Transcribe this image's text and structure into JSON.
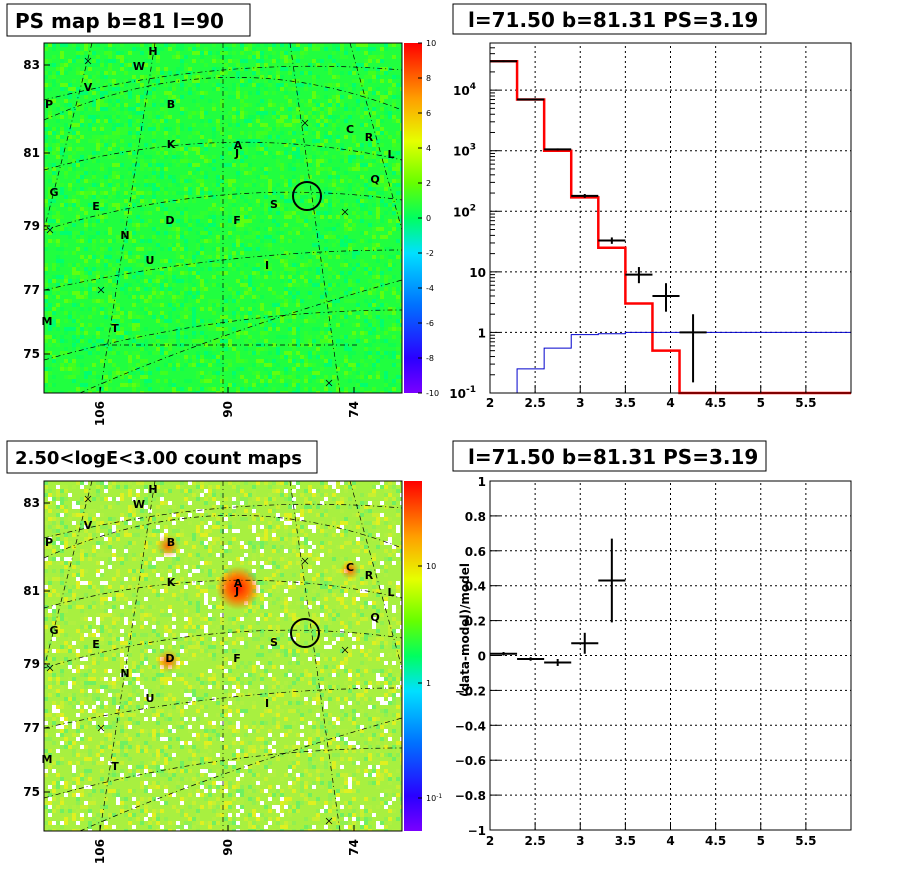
{
  "panels": {
    "ps_map": {
      "title": "PS map b=81 l=90",
      "y_ticks": [
        "83",
        "81",
        "79",
        "77",
        "75"
      ],
      "x_ticks": [
        "106",
        "90",
        "74"
      ],
      "colorbar_ticks": [
        "10",
        "8",
        "6",
        "4",
        "2",
        "0",
        "-2",
        "-4",
        "-6",
        "-8",
        "-10"
      ]
    },
    "count_map": {
      "title": "2.50<logE<3.00 count maps",
      "y_ticks": [
        "83",
        "81",
        "79",
        "77",
        "75"
      ],
      "x_ticks": [
        "106",
        "90",
        "74"
      ],
      "colorbar_ticks": [
        "10",
        "1",
        "10^-1"
      ]
    },
    "spectrum": {
      "title": "l=71.50 b=81.31 PS=3.19"
    },
    "ratio": {
      "title": "l=71.50 b=81.31 PS=3.19",
      "ylabel": "(data-model)/model"
    }
  },
  "map_labels": [
    "H",
    "W",
    "V",
    "P",
    "B",
    "C",
    "R",
    "K",
    "A",
    "J",
    "L",
    "Q",
    "G",
    "E",
    "S",
    "D",
    "F",
    "N",
    "U",
    "I",
    "M",
    "T"
  ],
  "colors": {
    "model_red": "#ff0000",
    "background_blue": "#0000cc",
    "data_black": "#000000"
  },
  "chart_data": [
    {
      "type": "heatmap",
      "title": "PS map b=81 l=90",
      "y_ticks": [
        83,
        81,
        79,
        77,
        75
      ],
      "x_ticks": [
        106,
        90,
        74
      ],
      "colorbar_range": [
        -10,
        10
      ]
    },
    {
      "type": "line",
      "title": "l=71.50 b=81.31 PS=3.19",
      "x_ticks": [
        2,
        2.5,
        3,
        3.5,
        4,
        4.5,
        5,
        5.5
      ],
      "xlim": [
        2,
        6
      ],
      "ylim": [
        0.1,
        60000
      ],
      "log_y": true,
      "y_tick_labels": [
        "10^-1",
        "1",
        "10",
        "10^2",
        "10^3",
        "10^4"
      ],
      "grid": true,
      "series": [
        {
          "color": "red",
          "bin_edges": [
            2.0,
            2.3,
            2.6,
            2.9,
            3.2,
            3.5,
            3.8,
            4.1,
            4.4,
            6.0
          ],
          "values": [
            30000,
            7000,
            1000,
            170,
            25,
            3,
            0.5,
            0.1,
            0.1
          ]
        },
        {
          "color": "blue",
          "bin_edges": [
            2.0,
            2.3,
            2.6,
            2.9,
            3.2,
            3.5,
            3.8,
            4.1,
            4.4,
            6.0
          ],
          "values": [
            0.1,
            0.25,
            0.55,
            0.92,
            0.95,
            1.0,
            1.0,
            1.0,
            1.0
          ]
        },
        {
          "color": "black",
          "x": [
            2.15,
            2.45,
            2.75,
            3.05,
            3.35,
            3.65,
            3.95,
            4.25
          ],
          "values": [
            30000,
            7000,
            1050,
            180,
            33,
            9,
            4,
            1
          ],
          "y_err_low": [
            29000,
            6850,
            1010,
            167,
            29,
            6.5,
            2.2,
            0.15
          ],
          "y_err_high": [
            31000,
            7150,
            1090,
            193,
            37,
            12,
            6.5,
            2.0
          ]
        }
      ]
    },
    {
      "type": "heatmap",
      "title": "2.50<logE<3.00 count maps",
      "y_ticks": [
        83,
        81,
        79,
        77,
        75
      ],
      "x_ticks": [
        106,
        90,
        74
      ],
      "colorbar_log": true
    },
    {
      "type": "scatter",
      "title": "l=71.50 b=81.31 PS=3.19",
      "ylabel": "(data-model)/model",
      "x_ticks": [
        2,
        2.5,
        3,
        3.5,
        4,
        4.5,
        5,
        5.5
      ],
      "y_ticks": [
        -1,
        -0.8,
        -0.6,
        -0.4,
        -0.2,
        0,
        0.2,
        0.4,
        0.6,
        0.8,
        1
      ],
      "xlim": [
        2,
        6
      ],
      "ylim": [
        -1,
        1
      ],
      "grid": true,
      "x": [
        2.15,
        2.45,
        2.75,
        3.05,
        3.35
      ],
      "values": [
        0.01,
        -0.02,
        -0.04,
        0.07,
        0.43
      ],
      "y_err": [
        0.01,
        0.01,
        0.02,
        0.06,
        0.24
      ],
      "x_err": [
        0.15,
        0.15,
        0.15,
        0.15,
        0.15
      ]
    }
  ]
}
